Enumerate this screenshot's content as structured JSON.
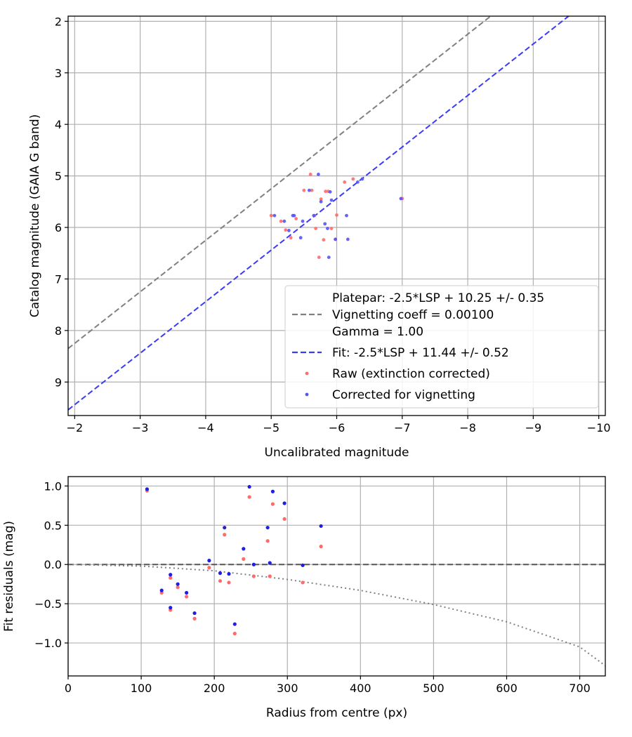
{
  "chart_data": [
    {
      "type": "scatter",
      "xlabel": "Uncalibrated magnitude",
      "ylabel": "Catalog magnitude (GAIA G band)",
      "xlim": [
        -1.9,
        -10.1
      ],
      "ylim": [
        9.65,
        1.9
      ],
      "x_inverted": true,
      "y_inverted": true,
      "grid": true,
      "legend_position": "lower-right",
      "x_ticks": [
        -2,
        -3,
        -4,
        -5,
        -6,
        -7,
        -8,
        -9,
        -10
      ],
      "y_ticks": [
        2,
        3,
        4,
        5,
        6,
        7,
        8,
        9
      ],
      "x_tick_labels": [
        "−2",
        "−3",
        "−4",
        "−5",
        "−6",
        "−7",
        "−8",
        "−9",
        "−10"
      ],
      "y_tick_labels": [
        "2",
        "3",
        "4",
        "5",
        "6",
        "7",
        "8",
        "9"
      ],
      "lines": [
        {
          "name": "Platepar: -2.5*LSP + 10.25 +/- 0.35",
          "extra_labels": [
            "Vignetting coeff = 0.00100",
            "Gamma = 1.00"
          ],
          "label_lines": [
            "Platepar: -2.5*LSP + 10.25 +/- 0.35",
            "Vignetting coeff = 0.00100",
            "Gamma = 1.00"
          ],
          "slope": 1.0,
          "intercept": 10.25,
          "color": "#808080",
          "style": "dashed"
        },
        {
          "name": "Fit: -2.5*LSP + 11.44 +/- 0.52",
          "slope": 1.0,
          "intercept": 11.44,
          "color": "#3b3bf0",
          "style": "dashed"
        }
      ],
      "series": [
        {
          "name": "Raw (extinction corrected)",
          "color": "#ff6a6a",
          "x": [
            -5.0,
            -5.15,
            -5.22,
            -5.3,
            -5.38,
            -5.5,
            -5.6,
            -5.62,
            -5.66,
            -5.68,
            -5.73,
            -5.76,
            -5.8,
            -5.83,
            -5.87,
            -5.92,
            -5.98,
            -6.0,
            -6.12,
            -6.25,
            -7.0
          ],
          "y": [
            5.77,
            5.88,
            6.05,
            6.2,
            5.83,
            5.28,
            4.97,
            5.28,
            5.77,
            6.02,
            6.58,
            5.45,
            6.24,
            5.3,
            5.3,
            6.02,
            6.23,
            5.76,
            5.12,
            5.06,
            5.44
          ]
        },
        {
          "name": "Corrected for vignetting",
          "color": "#5555f5",
          "x": [
            -5.05,
            -5.2,
            -5.27,
            -5.33,
            -5.35,
            -5.45,
            -5.48,
            -5.58,
            -5.65,
            -5.72,
            -5.76,
            -5.82,
            -5.86,
            -5.88,
            -5.9,
            -5.92,
            -5.98,
            -6.15,
            -6.17,
            -6.32,
            -6.39,
            -6.98
          ],
          "y": [
            5.77,
            5.88,
            6.06,
            5.77,
            5.77,
            6.2,
            5.88,
            5.28,
            5.77,
            4.97,
            5.5,
            5.93,
            6.02,
            6.58,
            5.31,
            5.47,
            6.23,
            5.77,
            6.23,
            5.12,
            5.06,
            5.44
          ]
        }
      ]
    },
    {
      "type": "scatter",
      "xlabel": "Radius from centre (px)",
      "ylabel": "Fit residuals (mag)",
      "xlim": [
        0,
        735
      ],
      "ylim": [
        -1.42,
        1.12
      ],
      "grid": true,
      "x_ticks": [
        0,
        100,
        200,
        300,
        400,
        500,
        600,
        700
      ],
      "y_ticks": [
        1.0,
        0.5,
        0.0,
        -0.5,
        -1.0
      ],
      "x_tick_labels": [
        "0",
        "100",
        "200",
        "300",
        "400",
        "500",
        "600",
        "700"
      ],
      "y_tick_labels": [
        "1.0",
        "0.5",
        "0.0",
        "−0.5",
        "−1.0"
      ],
      "reference_line": {
        "y": 0.0,
        "color": "#555555",
        "style": "dashed"
      },
      "vignetting_curve": {
        "color": "#808080",
        "style": "dotted",
        "x": [
          0,
          100,
          200,
          300,
          400,
          500,
          600,
          700,
          735
        ],
        "y": [
          0.0,
          -0.02,
          -0.08,
          -0.19,
          -0.33,
          -0.51,
          -0.73,
          -1.05,
          -1.29
        ]
      },
      "series": [
        {
          "name": "Raw (extinction corrected)",
          "color": "#ff6a6a",
          "x": [
            108,
            128,
            140,
            140,
            150,
            162,
            173,
            193,
            208,
            214,
            220,
            228,
            240,
            248,
            254,
            273,
            276,
            280,
            296,
            321,
            346
          ],
          "y": [
            0.94,
            -0.36,
            -0.17,
            -0.58,
            -0.29,
            -0.41,
            -0.69,
            -0.04,
            -0.21,
            0.38,
            -0.23,
            -0.88,
            0.07,
            0.86,
            -0.15,
            0.3,
            -0.15,
            0.77,
            0.58,
            -0.23,
            0.23
          ]
        },
        {
          "name": "Corrected for vignetting",
          "color": "#1e1ee6",
          "x": [
            108,
            128,
            140,
            140,
            150,
            162,
            173,
            193,
            208,
            214,
            220,
            228,
            240,
            248,
            254,
            273,
            276,
            280,
            296,
            321,
            346
          ],
          "y": [
            0.96,
            -0.33,
            -0.13,
            -0.55,
            -0.25,
            -0.36,
            -0.62,
            0.05,
            -0.11,
            0.47,
            -0.12,
            -0.76,
            0.2,
            0.99,
            0.0,
            0.47,
            0.02,
            0.93,
            0.78,
            -0.01,
            0.49
          ]
        }
      ]
    }
  ]
}
